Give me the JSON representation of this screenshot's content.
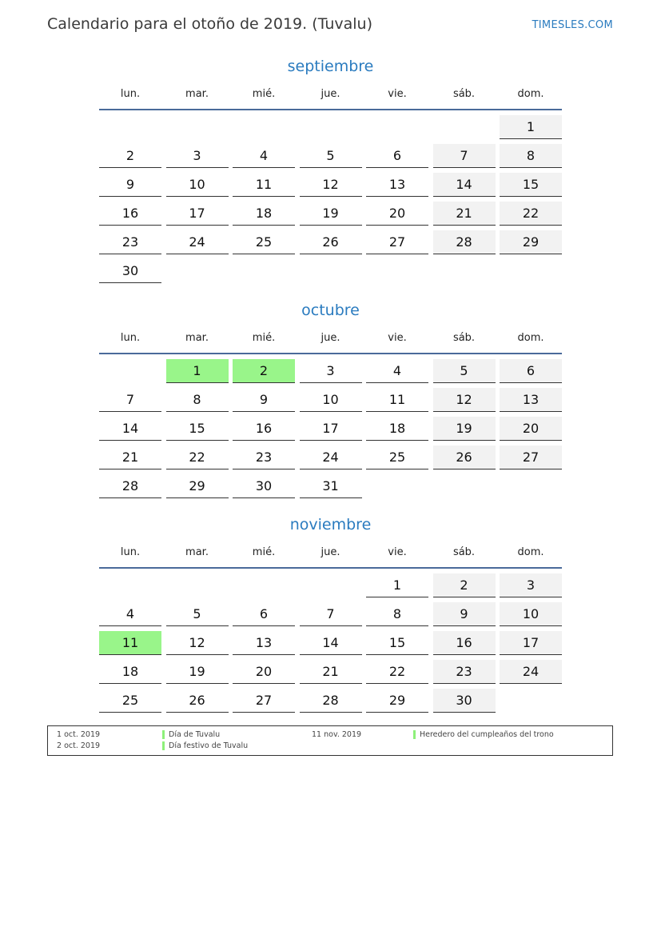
{
  "header": {
    "title": "Calendario para el otoño de 2019. (Tuvalu)",
    "brand": "TIMESLES.COM"
  },
  "weekdays": [
    "lun.",
    "mar.",
    "mié.",
    "jue.",
    "vie.",
    "sáb.",
    "dom."
  ],
  "colors": {
    "accent": "#2a7bbf",
    "weekend": "#f2f2f2",
    "holiday": "#99f58a"
  },
  "months": [
    {
      "name": "septiembre",
      "weeks": [
        [
          null,
          null,
          null,
          null,
          null,
          null,
          1
        ],
        [
          2,
          3,
          4,
          5,
          6,
          7,
          8
        ],
        [
          9,
          10,
          11,
          12,
          13,
          14,
          15
        ],
        [
          16,
          17,
          18,
          19,
          20,
          21,
          22
        ],
        [
          23,
          24,
          25,
          26,
          27,
          28,
          29
        ],
        [
          30,
          null,
          null,
          null,
          null,
          null,
          null
        ]
      ],
      "holidays": []
    },
    {
      "name": "octubre",
      "weeks": [
        [
          null,
          1,
          2,
          3,
          4,
          5,
          6
        ],
        [
          7,
          8,
          9,
          10,
          11,
          12,
          13
        ],
        [
          14,
          15,
          16,
          17,
          18,
          19,
          20
        ],
        [
          21,
          22,
          23,
          24,
          25,
          26,
          27
        ],
        [
          28,
          29,
          30,
          31,
          null,
          null,
          null
        ]
      ],
      "holidays": [
        1,
        2
      ]
    },
    {
      "name": "noviembre",
      "weeks": [
        [
          null,
          null,
          null,
          null,
          1,
          2,
          3
        ],
        [
          4,
          5,
          6,
          7,
          8,
          9,
          10
        ],
        [
          11,
          12,
          13,
          14,
          15,
          16,
          17
        ],
        [
          18,
          19,
          20,
          21,
          22,
          23,
          24
        ],
        [
          25,
          26,
          27,
          28,
          29,
          30,
          null
        ]
      ],
      "holidays": [
        11
      ]
    }
  ],
  "legend": [
    {
      "date": "1 oct. 2019",
      "name": "Día de Tuvalu"
    },
    {
      "date": "2 oct. 2019",
      "name": "Día festivo de Tuvalu"
    },
    {
      "date": "11 nov. 2019",
      "name": "Heredero del cumpleaños del trono"
    }
  ]
}
